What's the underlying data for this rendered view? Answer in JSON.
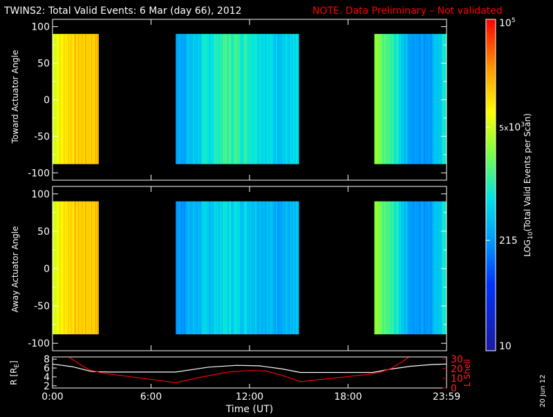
{
  "chart_data": [
    {
      "type": "heatmap",
      "title": "TWINS2: Total Valid Events:  6 Mar (day  66), 2012",
      "note": "NOTE. Data Preliminary – Not validated",
      "ylabel": "Toward Actuator Angle",
      "ylim": [
        -110,
        110
      ],
      "yticks": [
        100,
        50,
        0,
        -50,
        -100
      ],
      "xlim": [
        0,
        24
      ],
      "angle_range": [
        -88,
        90
      ],
      "blocks": [
        {
          "start": 0.0,
          "end": 2.8
        },
        {
          "start": 7.5,
          "end": 15.0
        },
        {
          "start": 19.6,
          "end": 24.0
        }
      ],
      "intensity_profile": [
        {
          "time": 0.0,
          "log_value": 3.75
        },
        {
          "time": 1.0,
          "log_value": 4.1
        },
        {
          "time": 2.8,
          "log_value": 4.2
        },
        {
          "time": 7.5,
          "log_value": 2.4
        },
        {
          "time": 8.5,
          "log_value": 2.6
        },
        {
          "time": 10.5,
          "log_value": 3.1
        },
        {
          "time": 12.0,
          "log_value": 3.0
        },
        {
          "time": 13.5,
          "log_value": 2.7
        },
        {
          "time": 15.0,
          "log_value": 2.7
        },
        {
          "time": 19.6,
          "log_value": 3.4
        },
        {
          "time": 21.0,
          "log_value": 2.9
        },
        {
          "time": 22.0,
          "log_value": 2.3
        },
        {
          "time": 23.0,
          "log_value": 2.4
        },
        {
          "time": 24.0,
          "log_value": 3.0
        }
      ]
    },
    {
      "type": "heatmap",
      "ylabel": "Away Actuator Angle",
      "ylim": [
        -110,
        110
      ],
      "yticks": [
        100,
        50,
        0,
        -50,
        -100
      ],
      "xlim": [
        0,
        24
      ],
      "angle_range": [
        -88,
        90
      ],
      "blocks": [
        {
          "start": 0.0,
          "end": 2.8
        },
        {
          "start": 7.5,
          "end": 15.0
        },
        {
          "start": 19.6,
          "end": 24.0
        }
      ],
      "intensity_profile": [
        {
          "time": 0.0,
          "log_value": 3.75
        },
        {
          "time": 1.0,
          "log_value": 4.1
        },
        {
          "time": 2.8,
          "log_value": 4.2
        },
        {
          "time": 7.5,
          "log_value": 2.3
        },
        {
          "time": 8.5,
          "log_value": 2.5
        },
        {
          "time": 10.5,
          "log_value": 2.8
        },
        {
          "time": 12.0,
          "log_value": 2.7
        },
        {
          "time": 13.5,
          "log_value": 2.5
        },
        {
          "time": 15.0,
          "log_value": 2.5
        },
        {
          "time": 19.6,
          "log_value": 3.4
        },
        {
          "time": 21.0,
          "log_value": 2.9
        },
        {
          "time": 22.0,
          "log_value": 2.3
        },
        {
          "time": 23.0,
          "log_value": 2.4
        },
        {
          "time": 24.0,
          "log_value": 3.0
        }
      ]
    },
    {
      "type": "line",
      "xlabel": "Time (UT)",
      "xticks": [
        "0:00",
        "6:00",
        "12:00",
        "18:00",
        "23:59"
      ],
      "xtick_values": [
        0,
        6,
        12,
        18,
        24
      ],
      "ylabel": "R [R",
      "ylabel_sub": "E",
      "ylabel_close": "]",
      "yticks": [
        "2",
        "4",
        "6",
        "8"
      ],
      "ylim": [
        1.5,
        8.5
      ],
      "y2label": "L Shell",
      "y2ticks": [
        "0",
        "10",
        "20",
        "30"
      ],
      "y2lim": [
        0,
        32
      ],
      "series": [
        {
          "color": "#ffffff",
          "axis": "left",
          "points": [
            [
              0,
              6.9
            ],
            [
              1.2,
              6.3
            ],
            [
              2.4,
              5.2
            ],
            [
              3.5,
              5.1
            ],
            [
              7.5,
              5.1
            ],
            [
              9.5,
              6.2
            ],
            [
              11.2,
              6.6
            ],
            [
              12.6,
              6.5
            ],
            [
              14.0,
              5.8
            ],
            [
              15.1,
              5.0
            ],
            [
              19.5,
              5.0
            ],
            [
              20.5,
              5.7
            ],
            [
              21.8,
              6.4
            ],
            [
              23.2,
              6.8
            ],
            [
              24,
              6.9
            ]
          ]
        },
        {
          "color": "#ff0000",
          "axis": "right",
          "points": [
            [
              1.0,
              32
            ],
            [
              1.6,
              25
            ],
            [
              2.2,
              19
            ],
            [
              3.0,
              15.5
            ],
            [
              7.5,
              5.5
            ],
            [
              9.0,
              11
            ],
            [
              10.7,
              16.5
            ],
            [
              12.0,
              18
            ],
            [
              13.0,
              17.5
            ],
            [
              14.0,
              13
            ],
            [
              15.1,
              6.5
            ],
            [
              19.2,
              14
            ],
            [
              19.8,
              15.5
            ],
            [
              20.6,
              20
            ],
            [
              21.3,
              27
            ],
            [
              21.7,
              32
            ]
          ]
        }
      ]
    }
  ],
  "colorbar": {
    "label": "LOG",
    "label_sub": "10",
    "label_rest": "(Total Valid Events per Scan)",
    "ticks": [
      {
        "base": "10",
        "exp": "5",
        "mant": "",
        "log_value": 5.0
      },
      {
        "base": "10",
        "exp": "3",
        "mant": "5x",
        "log_value": 3.699
      },
      {
        "base": "215",
        "exp": "",
        "mant": "",
        "log_value": 2.332
      },
      {
        "base": "10",
        "exp": "",
        "mant": "",
        "log_value": 1.0
      }
    ],
    "log_range": [
      1.0,
      5.0
    ]
  },
  "footer": {
    "date": "20 Jun 12"
  },
  "colors": {
    "background": "#000000",
    "note": "#ff0000",
    "frame": "#ffffff"
  }
}
